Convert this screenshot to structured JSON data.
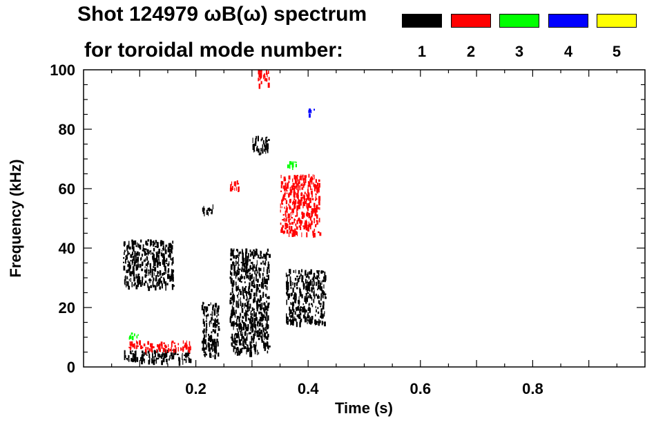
{
  "title_line1": "Shot 124979 ωB(ω) spectrum",
  "title_line2": "for toroidal mode number:",
  "legend": [
    {
      "label": "1",
      "color": "#000000"
    },
    {
      "label": "2",
      "color": "#ff0000"
    },
    {
      "label": "3",
      "color": "#00ff00"
    },
    {
      "label": "4",
      "color": "#0000ff"
    },
    {
      "label": "5",
      "color": "#ffff00"
    }
  ],
  "chart_data": {
    "type": "heatmap",
    "title": "Shot 124979 ωB(ω) spectrum",
    "xlabel": "Time (s)",
    "ylabel": "Frequency (kHz)",
    "xlim": [
      0.0,
      1.0
    ],
    "ylim": [
      0,
      100
    ],
    "xticks": [
      0.2,
      0.4,
      0.6,
      0.8
    ],
    "xtick_labels": [
      "0.2",
      "0.4",
      "0.6",
      "0.8"
    ],
    "yticks": [
      0,
      20,
      40,
      60,
      80,
      100
    ],
    "ytick_labels": [
      "0",
      "20",
      "40",
      "60",
      "80",
      "100"
    ],
    "regions": [
      {
        "mode": 1,
        "t0": 0.07,
        "t1": 0.16,
        "f0": 27,
        "f1": 43
      },
      {
        "mode": 1,
        "t0": 0.07,
        "t1": 0.19,
        "f0": 2,
        "f1": 6
      },
      {
        "mode": 1,
        "t0": 0.21,
        "t1": 0.23,
        "f0": 52,
        "f1": 55
      },
      {
        "mode": 1,
        "t0": 0.21,
        "t1": 0.24,
        "f0": 4,
        "f1": 22
      },
      {
        "mode": 1,
        "t0": 0.26,
        "t1": 0.33,
        "f0": 5,
        "f1": 40
      },
      {
        "mode": 1,
        "t0": 0.3,
        "t1": 0.33,
        "f0": 72,
        "f1": 78
      },
      {
        "mode": 1,
        "t0": 0.36,
        "t1": 0.43,
        "f0": 15,
        "f1": 33
      },
      {
        "mode": 2,
        "t0": 0.35,
        "t1": 0.42,
        "f0": 45,
        "f1": 65
      },
      {
        "mode": 2,
        "t0": 0.31,
        "t1": 0.33,
        "f0": 95,
        "f1": 100
      },
      {
        "mode": 2,
        "t0": 0.26,
        "t1": 0.28,
        "f0": 60,
        "f1": 63
      },
      {
        "mode": 2,
        "t0": 0.08,
        "t1": 0.19,
        "f0": 6,
        "f1": 9
      },
      {
        "mode": 3,
        "t0": 0.08,
        "t1": 0.1,
        "f0": 10,
        "f1": 12
      },
      {
        "mode": 3,
        "t0": 0.36,
        "t1": 0.38,
        "f0": 68,
        "f1": 70
      },
      {
        "mode": 4,
        "t0": 0.4,
        "t1": 0.41,
        "f0": 85,
        "f1": 87
      }
    ]
  }
}
